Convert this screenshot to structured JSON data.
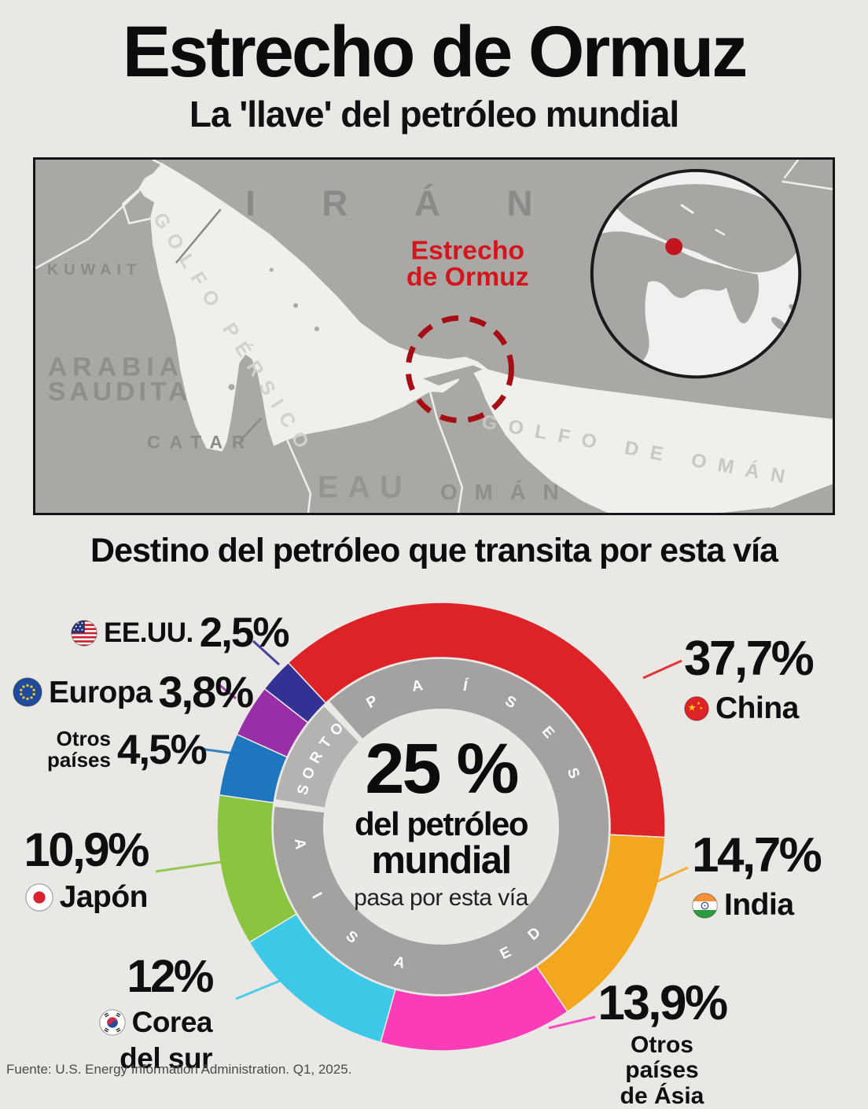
{
  "header": {
    "title": "Estrecho de Ormuz",
    "subtitle": "La 'llave' del petróleo mundial"
  },
  "map": {
    "labels": {
      "iran": "IRÁN",
      "kuwait": "KUWAIT",
      "golfo_persico": "GOLFO PÉRSICO",
      "arabia_1": "ARABIA",
      "arabia_2": "SAUDITA",
      "catar": "CATAR",
      "eau": "EAU",
      "oman": "OMÁN",
      "golfo_de_oman": "GOLFO DE OMÁN"
    },
    "callout": {
      "line1": "Estrecho",
      "line2": "de Ormuz"
    },
    "colors": {
      "water": "#f0efec",
      "land": "#a9a8a5",
      "callout_red": "#d3161e",
      "circle_red": "#a50e14"
    }
  },
  "section_title": "Destino del petróleo que transita por esta vía",
  "chart_data": {
    "type": "pie",
    "subtype": "donut",
    "title": "Destino del petróleo que transita por esta vía",
    "start_angle_deg": -43,
    "legend_position": "around",
    "ring_words": [
      "PAÍSES",
      "DE",
      "ASIA",
      "OTROS"
    ],
    "ring_colors": {
      "asia_arc": "#a3a2a0",
      "otros_arc": "#b5b3b1"
    },
    "center_label": {
      "value": "25 %",
      "line2": "del petróleo",
      "line3": "mundial",
      "line4": "pasa por esta vía"
    },
    "series": [
      {
        "name": "China",
        "value": 37.7,
        "value_label": "37,7%",
        "color": "#dd2328",
        "flag": "china"
      },
      {
        "name": "India",
        "value": 14.7,
        "value_label": "14,7%",
        "color": "#f2a71f",
        "flag": "india"
      },
      {
        "name": "Otros países de Ásia",
        "name_lines": [
          "Otros países",
          "de Ásia"
        ],
        "value": 13.9,
        "value_label": "13,9%",
        "color": "#fa3cb9",
        "flag": null
      },
      {
        "name": "Corea del sur",
        "name_lines": [
          "Corea",
          "del sur"
        ],
        "value": 12,
        "value_label": "12%",
        "color": "#3ec8e8",
        "flag": "south-korea"
      },
      {
        "name": "Japón",
        "value": 10.9,
        "value_label": "10,9%",
        "color": "#8bc540",
        "flag": "japan"
      },
      {
        "name": "Otros países",
        "name_lines": [
          "Otros",
          "países"
        ],
        "value": 4.5,
        "value_label": "4,5%",
        "color": "#1e76be",
        "flag": null
      },
      {
        "name": "Europa",
        "value": 3.8,
        "value_label": "3,8%",
        "color": "#992fa8",
        "flag": "eu"
      },
      {
        "name": "EE.UU.",
        "value": 2.5,
        "value_label": "2,5%",
        "color": "#333193",
        "flag": "usa"
      }
    ]
  },
  "footer": {
    "source": "Fuente: U.S. Energy Information Administration. Q1, 2025."
  }
}
